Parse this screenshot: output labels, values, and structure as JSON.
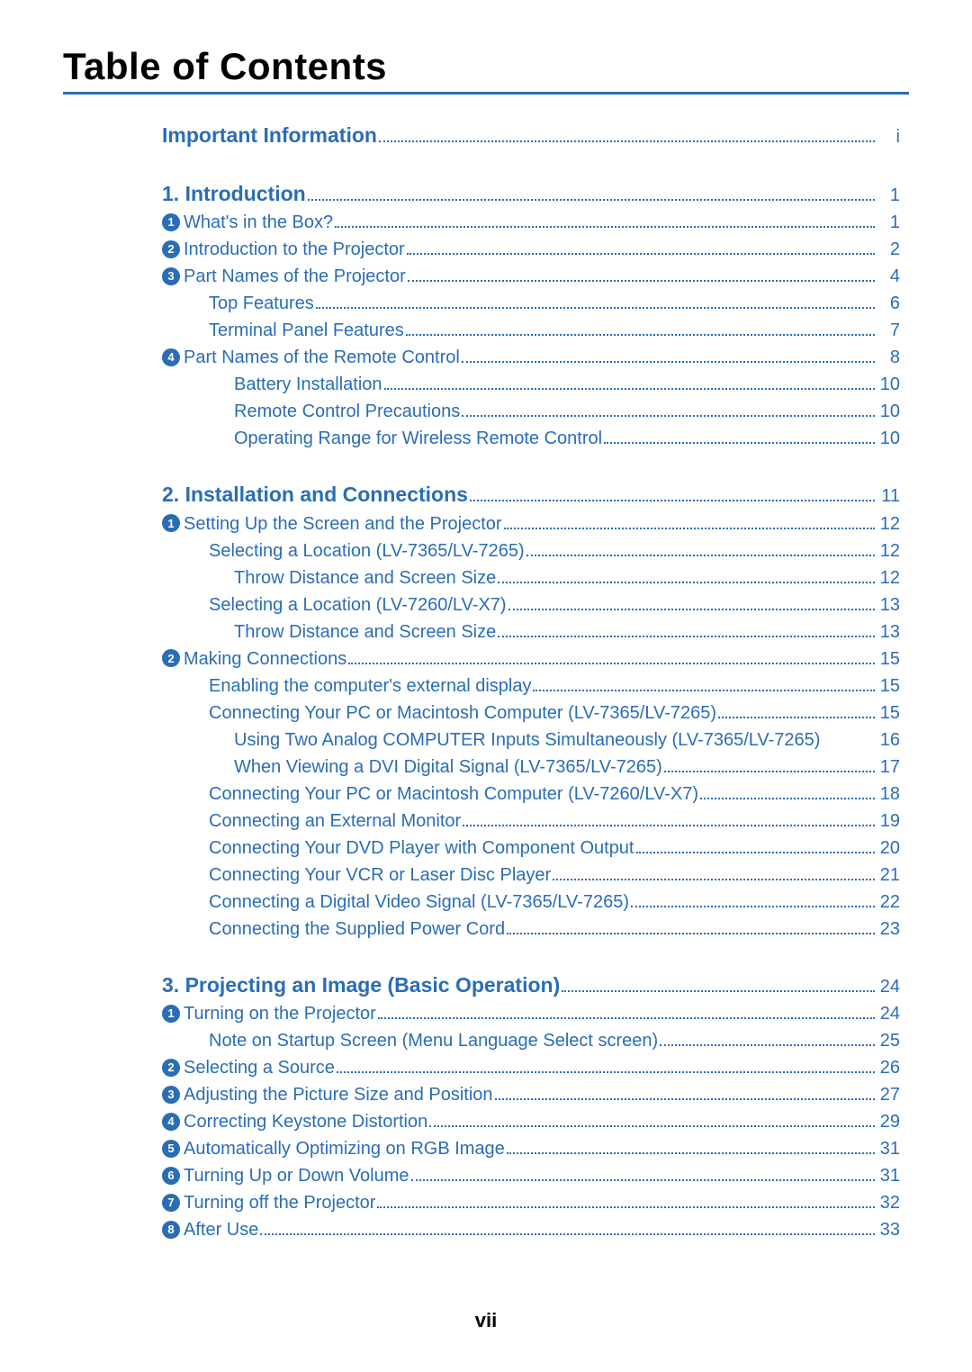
{
  "colors": {
    "accent": "#2a6db5",
    "rule": "#2a6db5",
    "text_blue": "#2a6db5",
    "page_bg": "#ffffff",
    "leader": "#2a6db5",
    "black": "#000000"
  },
  "page": {
    "title": "Table of Contents",
    "number": "vii"
  },
  "sections": [
    {
      "title": "Important Information",
      "page": "i",
      "type": "simple",
      "items": []
    },
    {
      "title": "1. Introduction",
      "page": "1",
      "items": [
        {
          "lvl": 1,
          "n": "1",
          "label": "What's in the Box?",
          "page": "1"
        },
        {
          "lvl": 1,
          "n": "2",
          "label": "Introduction to the Projector",
          "page": "2"
        },
        {
          "lvl": 1,
          "n": "3",
          "label": "Part Names of the Projector",
          "page": "4"
        },
        {
          "lvl": 2,
          "label": "Top Features",
          "page": "6"
        },
        {
          "lvl": 2,
          "label": "Terminal Panel Features",
          "page": "7"
        },
        {
          "lvl": 1,
          "n": "4",
          "label": "Part Names of the Remote Control",
          "page": "8"
        },
        {
          "lvl": 3,
          "label": "Battery Installation",
          "page": "10"
        },
        {
          "lvl": 3,
          "label": "Remote Control Precautions",
          "page": "10"
        },
        {
          "lvl": 3,
          "label": "Operating Range for Wireless Remote Control",
          "page": "10"
        }
      ]
    },
    {
      "title": "2. Installation and Connections",
      "page": "11",
      "items": [
        {
          "lvl": 1,
          "n": "1",
          "label": "Setting Up the Screen and the Projector",
          "page": "12"
        },
        {
          "lvl": 2,
          "label": "Selecting a Location (LV-7365/LV-7265)",
          "page": "12"
        },
        {
          "lvl": 3,
          "label": "Throw Distance and Screen Size",
          "page": "12"
        },
        {
          "lvl": 2,
          "label": "Selecting a Location (LV-7260/LV-X7)",
          "page": "13"
        },
        {
          "lvl": 3,
          "label": "Throw Distance and Screen Size",
          "page": "13"
        },
        {
          "lvl": 1,
          "n": "2",
          "label": "Making Connections",
          "page": "15"
        },
        {
          "lvl": 2,
          "label": "Enabling the computer's external display",
          "page": "15"
        },
        {
          "lvl": 2,
          "label": "Connecting Your PC or Macintosh Computer (LV-7365/LV-7265)",
          "page": "15"
        },
        {
          "lvl": 3,
          "label": "Using Two Analog COMPUTER Inputs Simultaneously (LV-7365/LV-7265)",
          "page": "16",
          "noleader": true
        },
        {
          "lvl": 3,
          "label": "When Viewing a DVI Digital Signal (LV-7365/LV-7265)",
          "page": "17"
        },
        {
          "lvl": 2,
          "label": "Connecting Your PC or Macintosh Computer (LV-7260/LV-X7)",
          "page": "18"
        },
        {
          "lvl": 2,
          "label": "Connecting an External Monitor",
          "page": "19"
        },
        {
          "lvl": 2,
          "label": "Connecting Your DVD Player with Component Output",
          "page": "20"
        },
        {
          "lvl": 2,
          "label": "Connecting Your VCR or Laser Disc Player",
          "page": "21"
        },
        {
          "lvl": 2,
          "label": "Connecting a Digital Video Signal (LV-7365/LV-7265) ",
          "page": "22"
        },
        {
          "lvl": 2,
          "label": "Connecting the Supplied Power Cord",
          "page": "23"
        }
      ]
    },
    {
      "title": "3. Projecting an Image (Basic Operation)",
      "page": "24",
      "items": [
        {
          "lvl": 1,
          "n": "1",
          "label": "Turning on the Projector",
          "page": "24"
        },
        {
          "lvl": 2,
          "label": "Note on Startup Screen (Menu Language Select screen)",
          "page": "25"
        },
        {
          "lvl": 1,
          "n": "2",
          "label": "Selecting a Source",
          "page": "26"
        },
        {
          "lvl": 1,
          "n": "3",
          "label": "Adjusting the Picture Size and Position",
          "page": "27"
        },
        {
          "lvl": 1,
          "n": "4",
          "label": "Correcting Keystone Distortion",
          "page": "29"
        },
        {
          "lvl": 1,
          "n": "5",
          "label": "Automatically Optimizing on RGB Image",
          "page": "31"
        },
        {
          "lvl": 1,
          "n": "6",
          "label": "Turning Up or Down Volume",
          "page": "31"
        },
        {
          "lvl": 1,
          "n": "7",
          "label": "Turning off the Projector",
          "page": "32"
        },
        {
          "lvl": 1,
          "n": "8",
          "label": "After Use",
          "page": "33"
        }
      ]
    }
  ]
}
